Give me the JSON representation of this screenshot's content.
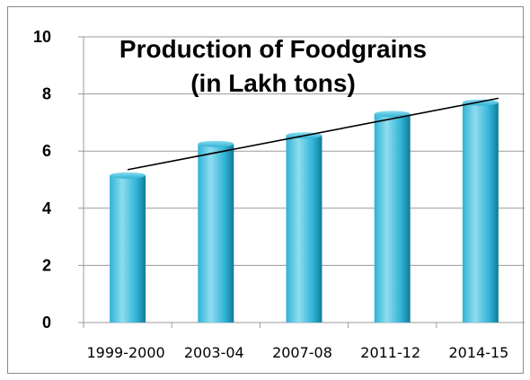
{
  "chart_data": {
    "type": "bar",
    "title": "Production of Foodgrains (in Lakh tons)",
    "title_lines": [
      "Production of Foodgrains",
      "(in Lakh tons)"
    ],
    "categories": [
      "1999-2000",
      "2003-04",
      "2007-08",
      "2011-12",
      "2014-15"
    ],
    "values": [
      5.15,
      6.25,
      6.55,
      7.3,
      7.7
    ],
    "ylim": [
      0,
      10
    ],
    "yticks": [
      "0",
      "2",
      "4",
      "6",
      "8",
      "10"
    ],
    "ytick_values": [
      0,
      2,
      4,
      6,
      8,
      10
    ],
    "grid": true,
    "legend": "none",
    "trendline": {
      "type": "linear",
      "start": 5.35,
      "end": 7.85
    },
    "colors": {
      "bar_light": "#8fdcef",
      "bar_mid": "#2fb3d6",
      "bar_dark": "#127a98",
      "grid": "#9a9a9a",
      "trendline": "#000000"
    }
  }
}
